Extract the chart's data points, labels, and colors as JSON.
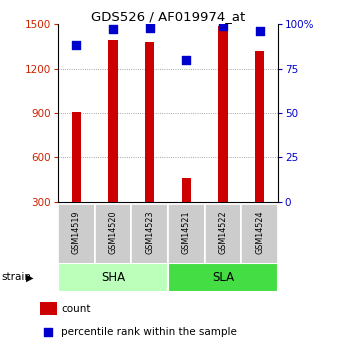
{
  "title": "GDS526 / AF019974_at",
  "samples": [
    "GSM14519",
    "GSM14520",
    "GSM14523",
    "GSM14521",
    "GSM14522",
    "GSM14524"
  ],
  "counts": [
    910,
    1390,
    1380,
    460,
    1490,
    1320
  ],
  "percentiles": [
    88,
    97,
    98,
    80,
    99,
    96
  ],
  "groups": [
    {
      "label": "SHA",
      "indices": [
        0,
        1,
        2
      ],
      "color": "#aaffaa"
    },
    {
      "label": "SLA",
      "indices": [
        3,
        4,
        5
      ],
      "color": "#44dd44"
    }
  ],
  "bar_color": "#cc0000",
  "dot_color": "#0000cc",
  "left_ylim": [
    300,
    1500
  ],
  "left_yticks": [
    300,
    600,
    900,
    1200,
    1500
  ],
  "right_ylim": [
    0,
    100
  ],
  "right_yticks": [
    0,
    25,
    50,
    75,
    100
  ],
  "right_yticklabels": [
    "0",
    "25",
    "50",
    "75",
    "100%"
  ],
  "left_tick_color": "#cc2200",
  "right_tick_color": "#0000cc",
  "grid_color": "#888888",
  "bar_width": 0.25,
  "dot_size": 28,
  "sample_label_color": "#cccccc",
  "sha_color": "#bbffbb",
  "sla_color": "#44dd44"
}
